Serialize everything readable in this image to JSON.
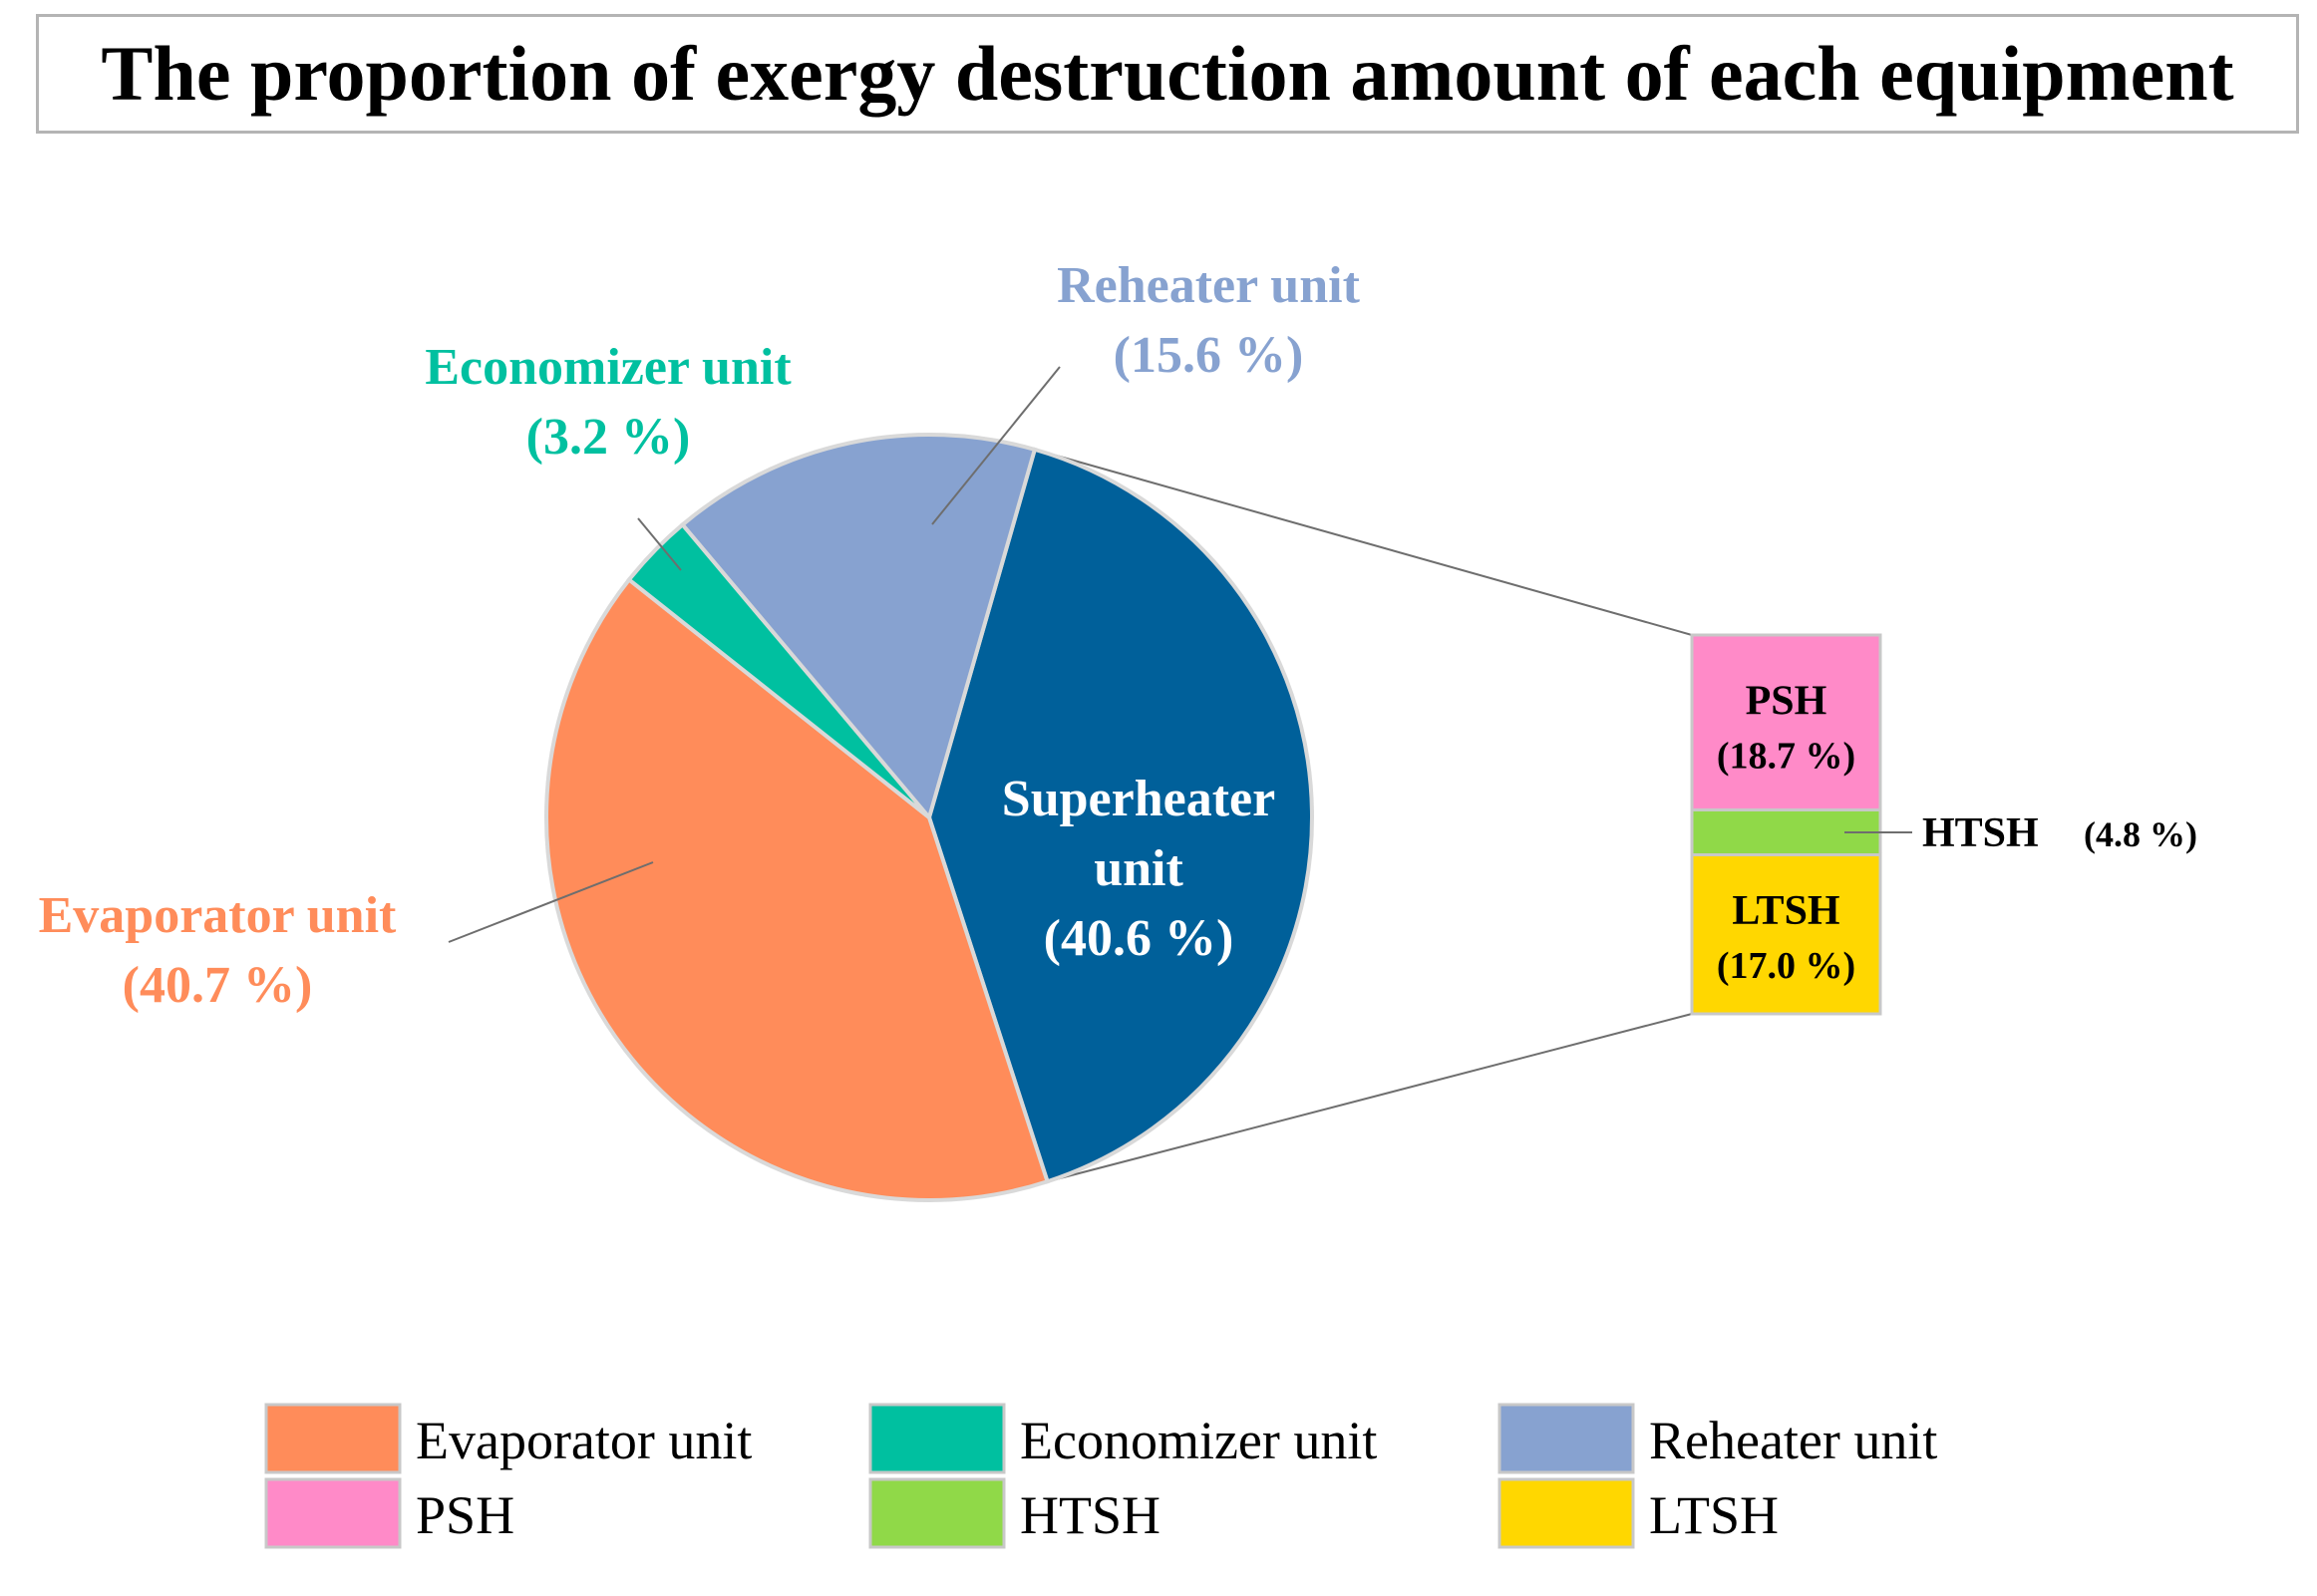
{
  "chart_data": {
    "type": "pie",
    "title": "The proportion of exergy destruction amount of each equipment",
    "slices": [
      {
        "key": "evaporator",
        "name": "Evaporator unit",
        "label": "Evaporator unit",
        "value": 40.7,
        "value_label": "(40.7 %)",
        "color": "#ff8c5a"
      },
      {
        "key": "economizer",
        "name": "Economizer unit",
        "label": "Economizer unit",
        "value": 3.2,
        "value_label": "(3.2 %)",
        "color": "#00c0a0"
      },
      {
        "key": "reheater",
        "name": "Reheater unit",
        "label": "Reheater unit",
        "value": 15.6,
        "value_label": "(15.6 %)",
        "color": "#87a2d0"
      },
      {
        "key": "superheater",
        "name": "Superheater unit",
        "label_lines": [
          "Superheater",
          "unit"
        ],
        "value": 40.6,
        "value_label": "(40.6 %)",
        "color": "#00609a"
      }
    ],
    "breakdown": {
      "parent": "Superheater unit",
      "type": "stacked-bar",
      "segments": [
        {
          "key": "psh",
          "name": "PSH",
          "label": "PSH",
          "value": 18.7,
          "value_label": "(18.7 %)",
          "color": "#ff8ac8"
        },
        {
          "key": "htsh",
          "name": "HTSH",
          "label": "HTSH",
          "value": 4.8,
          "value_label": "(4.8 %)",
          "color": "#90d948"
        },
        {
          "key": "ltsh",
          "name": "LTSH",
          "label": "LTSH",
          "value": 17.0,
          "value_label": "(17.0 %)",
          "color": "#ffd700"
        }
      ]
    },
    "legend": {
      "position": "bottom",
      "items": [
        "Evaporator unit",
        "Economizer unit",
        "Reheater unit",
        "PSH",
        "HTSH",
        "LTSH"
      ]
    }
  }
}
